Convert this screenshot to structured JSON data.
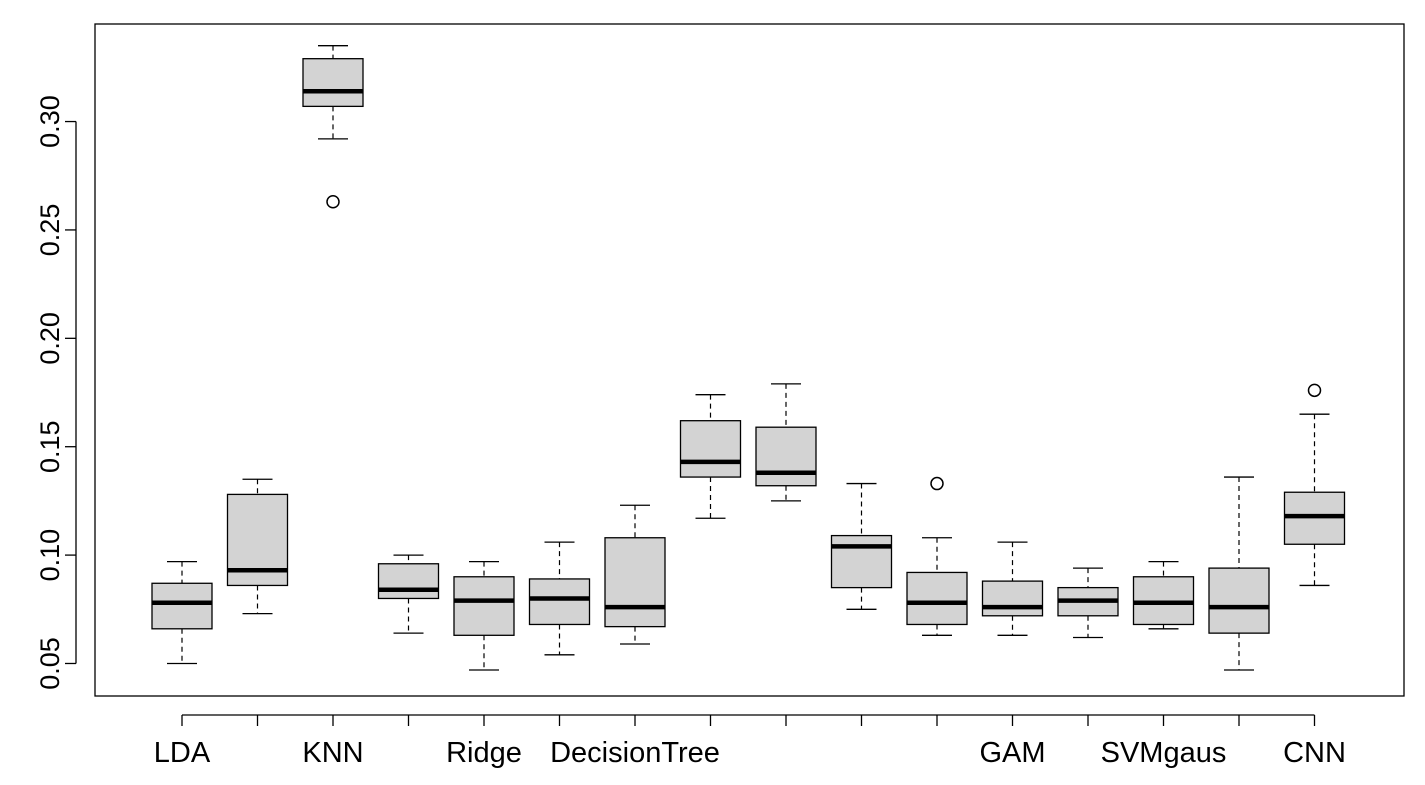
{
  "chart_data": {
    "type": "boxplot",
    "title": "",
    "xlabel": "",
    "ylabel": "",
    "ylim": [
      0.035,
      0.345
    ],
    "yticks": [
      "0.05",
      "0.10",
      "0.15",
      "0.20",
      "0.25",
      "0.30"
    ],
    "ytick_values": [
      0.05,
      0.1,
      0.15,
      0.2,
      0.25,
      0.3
    ],
    "box_fill": "#d3d3d3",
    "categories": [
      "LDA",
      "",
      "KNN",
      "",
      "Ridge",
      "",
      "DecisionTree",
      "",
      "",
      "",
      "",
      "GAM",
      "",
      "SVMgaus",
      "",
      "CNN"
    ],
    "boxes": [
      {
        "label": "LDA",
        "whisker_low": 0.05,
        "q1": 0.066,
        "median": 0.078,
        "q3": 0.087,
        "whisker_high": 0.097,
        "outliers": []
      },
      {
        "label": "",
        "whisker_low": 0.073,
        "q1": 0.086,
        "median": 0.093,
        "q3": 0.128,
        "whisker_high": 0.135,
        "outliers": []
      },
      {
        "label": "KNN",
        "whisker_low": 0.292,
        "q1": 0.307,
        "median": 0.314,
        "q3": 0.329,
        "whisker_high": 0.335,
        "outliers": [
          0.263
        ]
      },
      {
        "label": "",
        "whisker_low": 0.064,
        "q1": 0.08,
        "median": 0.084,
        "q3": 0.096,
        "whisker_high": 0.1,
        "outliers": []
      },
      {
        "label": "Ridge",
        "whisker_low": 0.047,
        "q1": 0.063,
        "median": 0.079,
        "q3": 0.09,
        "whisker_high": 0.097,
        "outliers": []
      },
      {
        "label": "",
        "whisker_low": 0.054,
        "q1": 0.068,
        "median": 0.08,
        "q3": 0.089,
        "whisker_high": 0.106,
        "outliers": []
      },
      {
        "label": "DecisionTree",
        "whisker_low": 0.059,
        "q1": 0.067,
        "median": 0.076,
        "q3": 0.108,
        "whisker_high": 0.123,
        "outliers": []
      },
      {
        "label": "",
        "whisker_low": 0.117,
        "q1": 0.136,
        "median": 0.143,
        "q3": 0.162,
        "whisker_high": 0.174,
        "outliers": []
      },
      {
        "label": "",
        "whisker_low": 0.125,
        "q1": 0.132,
        "median": 0.138,
        "q3": 0.159,
        "whisker_high": 0.179,
        "outliers": []
      },
      {
        "label": "",
        "whisker_low": 0.075,
        "q1": 0.085,
        "median": 0.104,
        "q3": 0.109,
        "whisker_high": 0.133,
        "outliers": []
      },
      {
        "label": "",
        "whisker_low": 0.063,
        "q1": 0.068,
        "median": 0.078,
        "q3": 0.092,
        "whisker_high": 0.108,
        "outliers": [
          0.133
        ]
      },
      {
        "label": "GAM",
        "whisker_low": 0.063,
        "q1": 0.072,
        "median": 0.076,
        "q3": 0.088,
        "whisker_high": 0.106,
        "outliers": []
      },
      {
        "label": "",
        "whisker_low": 0.062,
        "q1": 0.072,
        "median": 0.079,
        "q3": 0.085,
        "whisker_high": 0.094,
        "outliers": []
      },
      {
        "label": "SVMgaus",
        "whisker_low": 0.066,
        "q1": 0.068,
        "median": 0.078,
        "q3": 0.09,
        "whisker_high": 0.097,
        "outliers": []
      },
      {
        "label": "",
        "whisker_low": 0.047,
        "q1": 0.064,
        "median": 0.076,
        "q3": 0.094,
        "whisker_high": 0.136,
        "outliers": []
      },
      {
        "label": "CNN",
        "whisker_low": 0.086,
        "q1": 0.105,
        "median": 0.118,
        "q3": 0.129,
        "whisker_high": 0.165,
        "outliers": [
          0.176
        ]
      }
    ]
  }
}
